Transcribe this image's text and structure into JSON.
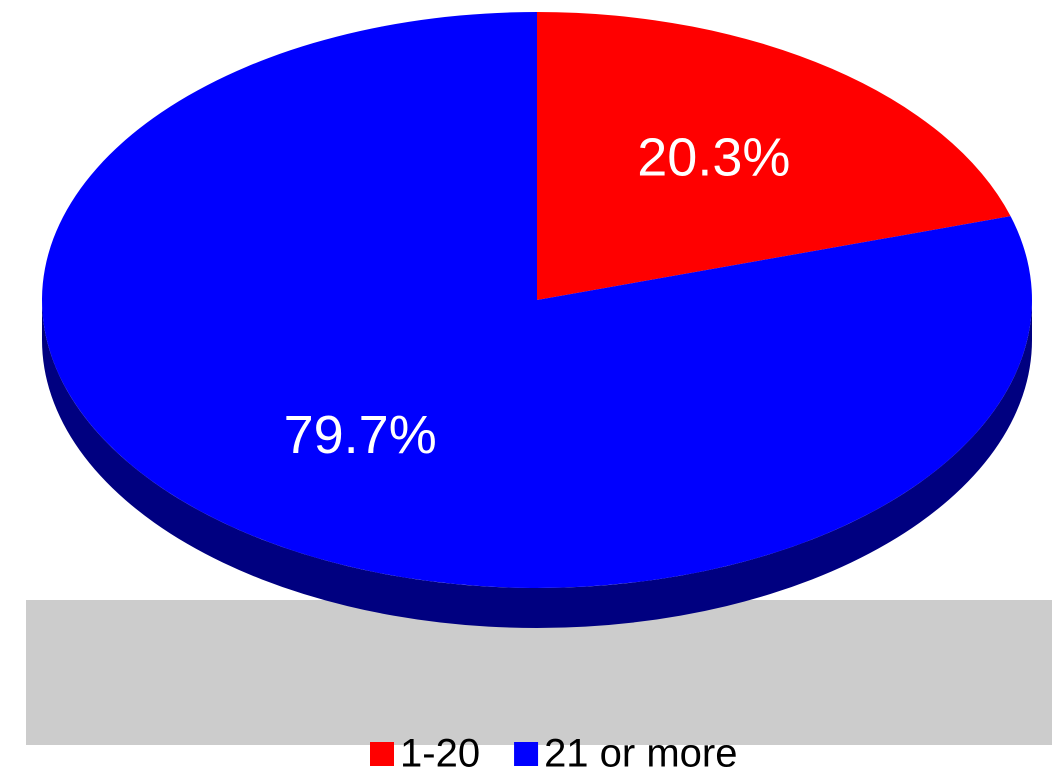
{
  "chart_data": {
    "type": "pie",
    "categories": [
      "1-20",
      "21 or more"
    ],
    "values": [
      20.3,
      79.7
    ],
    "value_labels": [
      "20.3%",
      "79.7%"
    ],
    "colors": [
      "#ff0000",
      "#0000ff"
    ],
    "legend": "bottom"
  }
}
